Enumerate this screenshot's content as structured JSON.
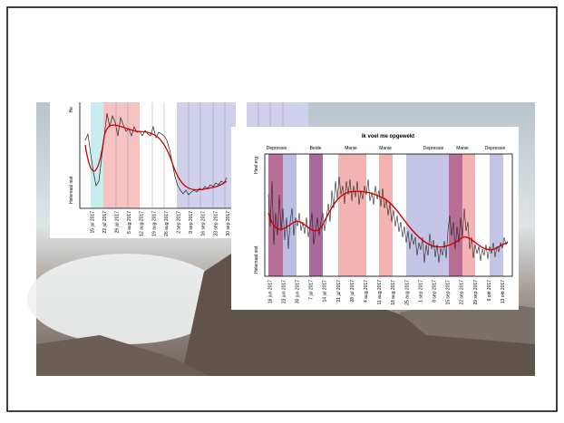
{
  "front_chart": {
    "title": "Ik voel me opgewekt",
    "y_top": "Heel erg",
    "y_bottom": "Helemaal niet",
    "phases": [
      "Depressie",
      "Beide",
      "Manie",
      "Manie",
      "Depressie",
      "Manie",
      "Depressie"
    ],
    "dates": [
      "16 jun 2017",
      "23 jun 2017",
      "30 jun 2017",
      "7 jul 2017",
      "14 jul 2017",
      "21 jul 2017",
      "28 jul 2017",
      "4 aug 2017",
      "11 aug 2017",
      "18 aug 2017",
      "25 aug 2017",
      "1 sep 2017",
      "8 sep 2017",
      "15 sep 2017",
      "22 sep 2017",
      "29 sep 2017",
      "6 okt 2017",
      "13 okt 2017"
    ]
  },
  "back_chart": {
    "y_top": "He",
    "y_bottom": "Helemaal niet",
    "dates": [
      "15 jul 2017",
      "22 jul 2017",
      "29 jul 2017",
      "5 aug 2017",
      "12 aug 2017",
      "19 aug 2017",
      "26 aug 2017",
      "2 sep 2017",
      "9 sep 2017",
      "16 sep 2017",
      "23 sep 2017",
      "30 sep 2017"
    ]
  }
}
